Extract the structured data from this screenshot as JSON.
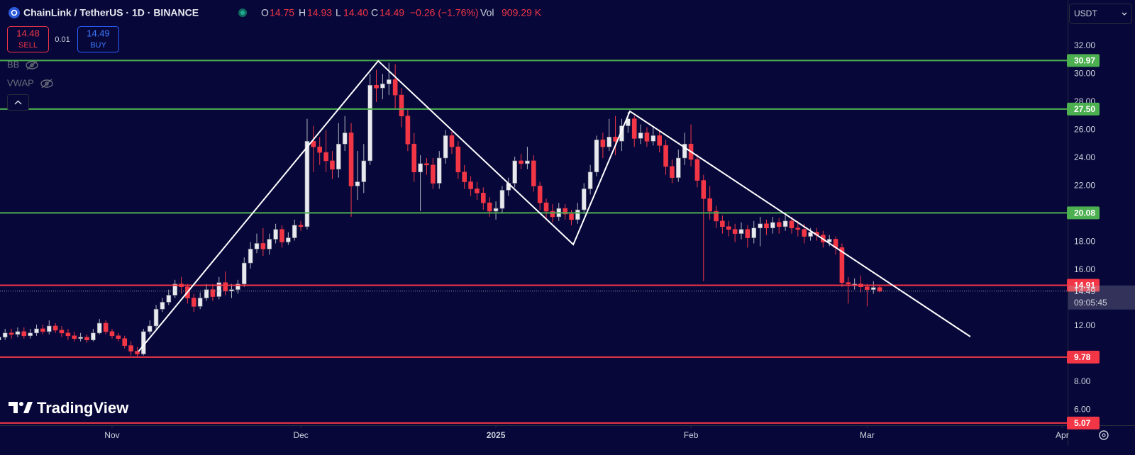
{
  "header": {
    "symbol": "ChainLink / TetherUS · 1D · BINANCE",
    "o_label": "O",
    "o": "14.75",
    "h_label": "H",
    "h": "14.93",
    "l_label": "L",
    "l": "14.40",
    "c_label": "C",
    "c": "14.49",
    "change": "−0.26 (−1.76%)",
    "vol_label": "Vol",
    "vol": "909.29 K"
  },
  "trade": {
    "sell_price": "14.48",
    "sell": "SELL",
    "spread": "0.01",
    "buy_price": "14.49",
    "buy": "BUY"
  },
  "indicators": [
    "BB",
    "VWAP"
  ],
  "currency": "USDT",
  "logo": "TradingView",
  "chart_data": {
    "type": "candlestick",
    "up_color": "#e8eaf0",
    "down_color": "#f23645",
    "open": [
      11.0,
      11.2,
      11.5,
      11.4,
      11.6,
      11.3,
      11.5,
      11.8,
      11.6,
      12.0,
      11.7,
      11.5,
      11.3,
      11.1,
      11.2,
      11.0,
      11.5,
      12.2,
      11.6,
      11.3,
      11.1,
      10.6,
      10.2,
      10.0,
      11.6,
      12.0,
      13.2,
      13.7,
      14.2,
      15.0,
      14.8,
      14.0,
      13.4,
      14.0,
      14.6,
      14.1,
      15.1,
      14.5,
      14.6,
      15.0,
      16.5,
      17.5,
      17.9,
      17.5,
      18.2,
      18.9,
      18.0,
      18.3,
      19.2,
      19.1,
      25.2,
      24.8,
      24.4,
      23.8,
      23.2,
      25.0,
      25.8,
      22.0,
      22.3,
      23.8,
      29.2,
      29.0,
      29.3,
      29.6,
      28.5,
      27.0,
      25.0,
      23.0,
      23.6,
      23.5,
      22.2,
      24.0,
      25.6,
      24.8,
      23.0,
      22.3,
      21.8,
      21.5,
      20.8,
      20.2,
      20.4,
      21.7,
      22.2,
      23.8,
      23.6,
      23.8,
      22.0,
      20.8,
      20.2,
      19.8,
      20.4,
      20.0,
      19.6,
      20.3,
      21.8,
      23.0,
      25.3,
      24.8,
      25.5,
      25.2,
      26.3,
      26.8,
      25.4,
      25.8,
      25.2,
      25.6,
      24.9,
      23.4,
      22.6,
      24.0,
      25.0,
      23.9,
      22.4,
      21.1,
      20.2,
      19.5,
      19.1,
      18.9,
      18.6,
      18.9,
      18.3,
      19.0,
      19.3,
      19.0,
      19.4,
      19.1,
      19.5,
      19.0,
      18.9,
      18.4,
      18.7,
      18.5,
      18.0,
      18.2,
      17.6,
      15.1,
      15.0,
      15.0,
      14.8,
      14.6,
      14.75
    ],
    "high": [
      11.5,
      11.8,
      11.8,
      11.9,
      11.9,
      11.8,
      12.1,
      12.1,
      12.4,
      12.2,
      12.0,
      11.8,
      11.6,
      11.5,
      11.4,
      11.8,
      12.5,
      12.4,
      11.8,
      11.5,
      11.3,
      10.9,
      10.5,
      11.8,
      12.4,
      13.5,
      14.0,
      14.6,
      15.3,
      15.5,
      15.0,
      14.3,
      14.4,
      15.0,
      15.0,
      15.5,
      15.9,
      15.0,
      15.3,
      16.9,
      18.0,
      18.6,
      19.0,
      18.6,
      19.3,
      19.2,
      18.7,
      19.6,
      19.5,
      26.8,
      26.3,
      25.5,
      26.0,
      24.5,
      26.5,
      27.0,
      26.5,
      24.5,
      25.0,
      30.0,
      30.3,
      30.0,
      30.8,
      30.7,
      29.0,
      27.5,
      25.8,
      24.2,
      24.0,
      24.0,
      24.5,
      26.0,
      25.9,
      25.2,
      23.5,
      22.7,
      22.3,
      21.9,
      21.2,
      20.9,
      22.0,
      22.6,
      24.1,
      24.3,
      24.8,
      24.2,
      22.3,
      21.1,
      20.7,
      20.8,
      20.7,
      20.3,
      20.8,
      22.2,
      23.5,
      25.6,
      25.8,
      26.8,
      27.0,
      26.8,
      27.3,
      27.0,
      26.4,
      26.2,
      26.3,
      26.0,
      25.3,
      23.9,
      24.6,
      25.8,
      26.4,
      24.3,
      22.8,
      22.0,
      20.6,
      19.9,
      19.5,
      19.3,
      19.4,
      19.2,
      19.5,
      19.8,
      19.6,
      19.8,
      19.7,
      19.9,
      19.8,
      19.5,
      19.3,
      19.0,
      19.0,
      18.8,
      18.5,
      18.4,
      17.9,
      15.5,
      15.4,
      15.6,
      15.0,
      15.2,
      14.93
    ],
    "low": [
      10.8,
      11.0,
      11.1,
      11.2,
      11.1,
      11.1,
      11.3,
      11.4,
      11.4,
      11.5,
      11.2,
      11.0,
      10.9,
      10.9,
      10.8,
      10.9,
      11.4,
      11.4,
      11.1,
      10.9,
      10.4,
      9.9,
      9.8,
      9.9,
      11.4,
      11.8,
      13.0,
      13.5,
      14.0,
      14.3,
      13.6,
      13.0,
      13.2,
      13.8,
      13.8,
      13.9,
      14.2,
      14.0,
      14.3,
      14.8,
      16.1,
      17.2,
      17.0,
      17.1,
      17.9,
      17.6,
      17.8,
      18.1,
      18.8,
      18.9,
      23.0,
      23.5,
      23.0,
      22.5,
      22.6,
      24.5,
      19.8,
      21.0,
      21.5,
      23.5,
      28.0,
      28.2,
      28.5,
      27.5,
      26.2,
      24.5,
      22.3,
      20.2,
      22.8,
      21.8,
      21.8,
      23.6,
      24.3,
      22.5,
      21.8,
      21.3,
      21.0,
      20.3,
      19.8,
      19.6,
      20.1,
      21.3,
      21.9,
      23.2,
      23.2,
      21.6,
      20.3,
      19.6,
      19.4,
      19.5,
      19.6,
      19.2,
      19.3,
      20.0,
      21.4,
      22.7,
      24.0,
      24.5,
      24.2,
      24.5,
      25.8,
      24.8,
      25.0,
      24.8,
      24.9,
      24.4,
      22.8,
      22.2,
      22.3,
      23.5,
      23.4,
      21.9,
      15.2,
      19.6,
      19.0,
      18.6,
      18.4,
      18.0,
      18.2,
      17.6,
      17.9,
      17.7,
      18.5,
      18.6,
      18.6,
      18.8,
      18.6,
      18.4,
      17.9,
      18.1,
      18.1,
      17.6,
      17.7,
      17.1,
      14.8,
      13.6,
      14.6,
      14.4,
      13.4,
      14.3,
      14.4
    ],
    "close": [
      11.2,
      11.5,
      11.4,
      11.6,
      11.3,
      11.5,
      11.8,
      11.6,
      12.0,
      11.7,
      11.5,
      11.3,
      11.1,
      11.2,
      11.0,
      11.5,
      12.2,
      11.6,
      11.3,
      11.1,
      10.6,
      10.2,
      10.0,
      11.6,
      12.0,
      13.2,
      13.7,
      14.2,
      15.0,
      14.8,
      14.0,
      13.4,
      14.0,
      14.6,
      14.1,
      15.1,
      14.5,
      14.6,
      15.0,
      16.5,
      17.5,
      17.9,
      17.5,
      18.2,
      18.9,
      18.0,
      18.3,
      19.2,
      19.1,
      25.2,
      24.8,
      24.4,
      23.8,
      23.2,
      25.0,
      25.8,
      22.0,
      22.3,
      23.8,
      29.2,
      29.0,
      29.3,
      29.6,
      28.5,
      27.0,
      25.0,
      23.0,
      23.6,
      23.5,
      22.2,
      24.0,
      25.6,
      24.8,
      23.0,
      22.3,
      21.8,
      21.5,
      20.8,
      20.2,
      20.4,
      21.7,
      22.2,
      23.8,
      23.6,
      23.8,
      22.0,
      20.8,
      20.2,
      19.8,
      20.4,
      20.0,
      19.6,
      20.3,
      21.8,
      23.0,
      25.3,
      24.8,
      25.5,
      25.2,
      26.3,
      26.8,
      25.4,
      25.8,
      25.2,
      25.6,
      24.9,
      23.4,
      22.6,
      24.0,
      25.0,
      23.9,
      22.4,
      21.1,
      20.2,
      19.5,
      19.1,
      18.9,
      18.6,
      18.9,
      18.3,
      19.0,
      19.3,
      19.0,
      19.4,
      19.1,
      19.5,
      19.0,
      18.9,
      18.4,
      18.7,
      18.5,
      18.0,
      18.2,
      17.6,
      15.1,
      15.0,
      15.0,
      14.8,
      14.6,
      14.75,
      14.49
    ],
    "xlim": [
      0.19,
      169.86
    ],
    "xticks": [
      {
        "value": 18,
        "label": "Nov"
      },
      {
        "value": 48,
        "label": "Dec"
      },
      {
        "value": 79,
        "label": "2025"
      },
      {
        "value": 110,
        "label": "Feb"
      },
      {
        "value": 138,
        "label": "Mar"
      },
      {
        "value": 169,
        "label": "Apr"
      }
    ],
    "ylim": [
      4.91,
      35.29
    ],
    "yticks": [
      {
        "value": 6,
        "label": "6.00"
      },
      {
        "value": 8,
        "label": "8.00"
      },
      {
        "value": 12,
        "label": "12.00"
      },
      {
        "value": 16,
        "label": "16.00"
      },
      {
        "value": 18,
        "label": "18.00"
      },
      {
        "value": 22,
        "label": "22.00"
      },
      {
        "value": 24,
        "label": "24.00"
      },
      {
        "value": 26,
        "label": "26.00"
      },
      {
        "value": 28,
        "label": "28.00"
      },
      {
        "value": 30,
        "label": "30.00"
      },
      {
        "value": 32,
        "label": "32.00"
      }
    ],
    "levels": [
      {
        "value": 30.97,
        "label": "30.97",
        "color": "#4caf50"
      },
      {
        "value": 27.5,
        "label": "27.50",
        "color": "#4caf50"
      },
      {
        "value": 20.08,
        "label": "20.08",
        "color": "#4caf50"
      },
      {
        "value": 14.91,
        "label": "14.91",
        "color": "#f23645"
      },
      {
        "value": 9.78,
        "label": "9.78",
        "color": "#f23645"
      },
      {
        "value": 5.07,
        "label": "5.07",
        "color": "#f23645"
      }
    ],
    "trendlines": [
      {
        "color": "#ffffff",
        "x": [
          22.2,
          60.3,
          91.3,
          100.3,
          154.4
        ],
        "y": [
          10.18,
          30.94,
          17.82,
          27.34,
          11.24
        ]
      }
    ],
    "countdown": "09:05:45"
  }
}
